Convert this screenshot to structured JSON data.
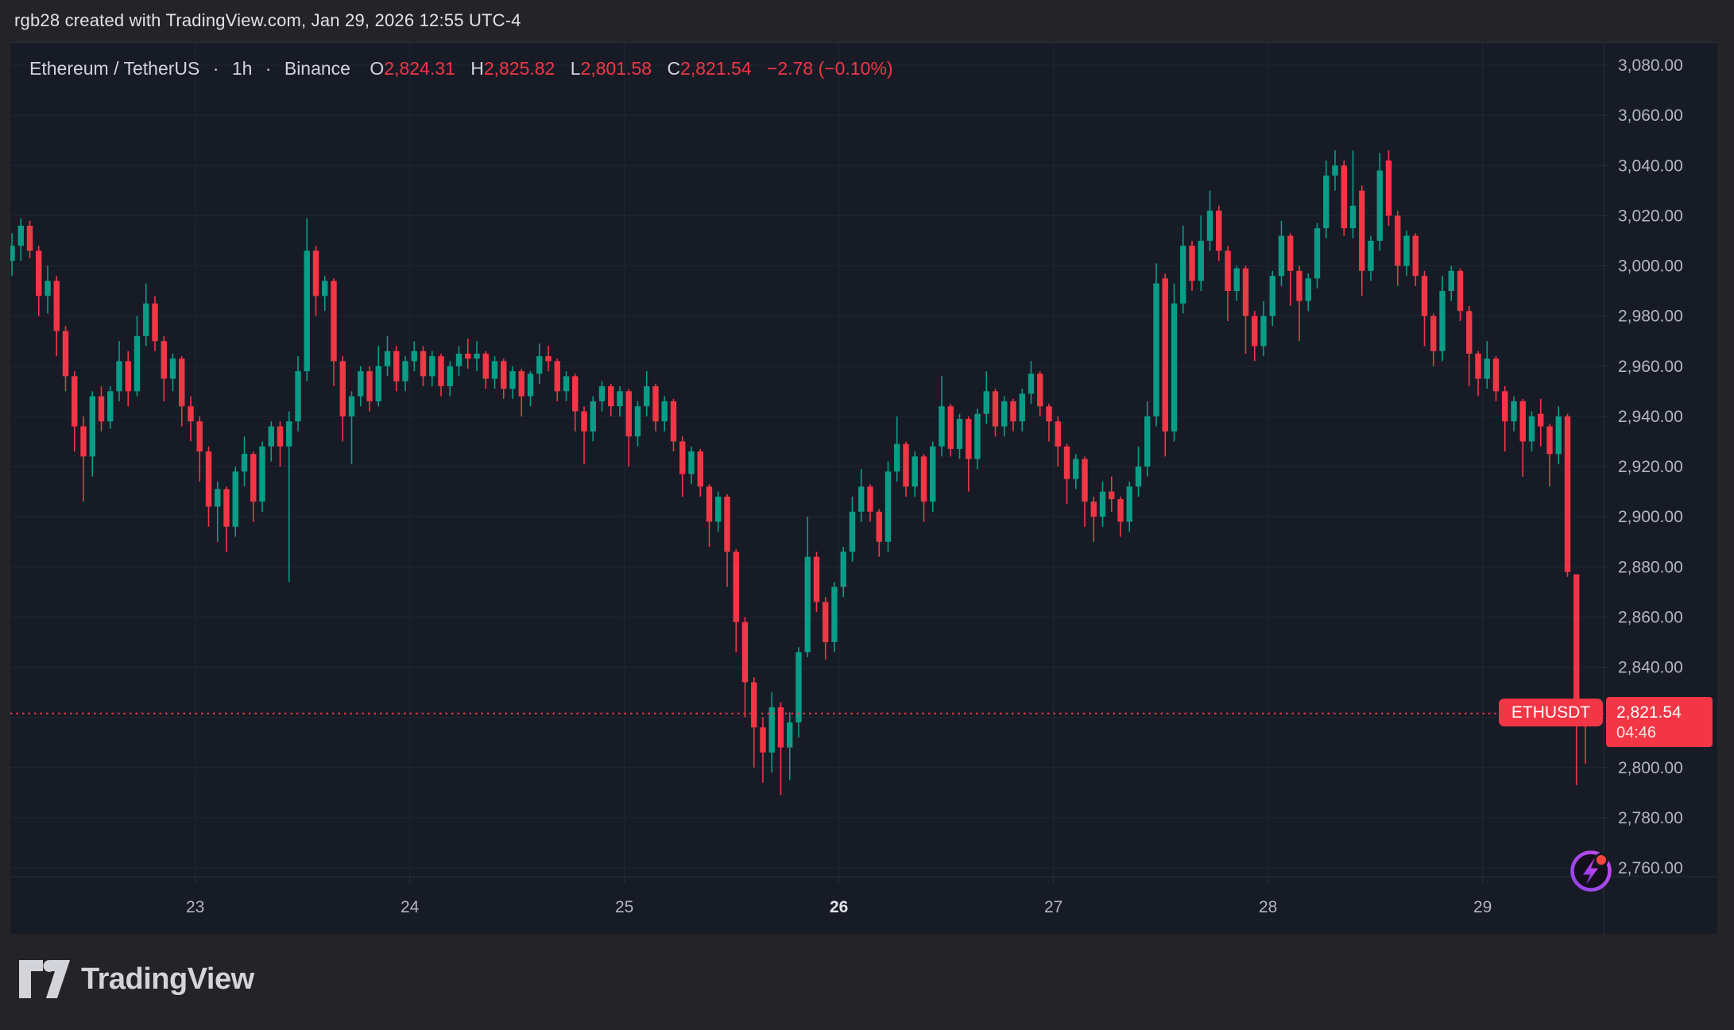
{
  "attribution": "rgb28 created with TradingView.com, Jan 29, 2026 12:55 UTC-4",
  "header": {
    "symbol": "Ethereum / TetherUS",
    "dot1": "·",
    "interval": "1h",
    "dot2": "·",
    "exchange": "Binance",
    "o_label": "O",
    "o": "2,824.31",
    "h_label": "H",
    "h": "2,825.82",
    "l_label": "L",
    "l": "2,801.58",
    "c_label": "C",
    "c": "2,821.54",
    "change": "−2.78 (−0.10%)"
  },
  "badge": {
    "symbol": "ETHUSDT",
    "price": "2,821.54",
    "countdown": "04:46"
  },
  "footer": {
    "brand": "TradingView"
  },
  "chart_data": {
    "type": "candlestick",
    "title": "Ethereum / TetherUS",
    "symbol": "ETHUSDT",
    "exchange": "Binance",
    "interval": "1h",
    "last_price": 2821.54,
    "countdown": "04:46",
    "colors": {
      "up": "#0a9c86",
      "down": "#f23645",
      "last_price_line": "#f23645"
    },
    "y_axis": {
      "min": 2760,
      "max": 3080,
      "step": 20
    },
    "price_scale_labels": [
      {
        "text": "3,080.00",
        "price": 3080
      },
      {
        "text": "3,060.00",
        "price": 3060
      },
      {
        "text": "3,040.00",
        "price": 3040
      },
      {
        "text": "3,020.00",
        "price": 3020
      },
      {
        "text": "3,000.00",
        "price": 3000
      },
      {
        "text": "2,980.00",
        "price": 2980
      },
      {
        "text": "2,960.00",
        "price": 2960
      },
      {
        "text": "2,940.00",
        "price": 2940
      },
      {
        "text": "2,920.00",
        "price": 2920
      },
      {
        "text": "2,900.00",
        "price": 2900
      },
      {
        "text": "2,880.00",
        "price": 2880
      },
      {
        "text": "2,860.00",
        "price": 2860
      },
      {
        "text": "2,840.00",
        "price": 2840
      },
      {
        "text": "2,820.00",
        "price": 2820
      },
      {
        "text": "2,800.00",
        "price": 2800
      },
      {
        "text": "2,780.00",
        "price": 2780
      },
      {
        "text": "2,760.00",
        "price": 2760
      }
    ],
    "day_marks": [
      {
        "label": "23",
        "index": 21,
        "bold": false
      },
      {
        "label": "24",
        "index": 45,
        "bold": false
      },
      {
        "label": "25",
        "index": 69,
        "bold": false
      },
      {
        "label": "26",
        "index": 93,
        "bold": true
      },
      {
        "label": "27",
        "index": 117,
        "bold": false
      },
      {
        "label": "28",
        "index": 141,
        "bold": false
      },
      {
        "label": "29",
        "index": 165,
        "bold": false
      }
    ],
    "candles_format": [
      "open",
      "high",
      "low",
      "close"
    ],
    "candles": [
      [
        3002,
        3013,
        2996,
        3008
      ],
      [
        3008,
        3019,
        3002,
        3016
      ],
      [
        3016,
        3018,
        3003,
        3006
      ],
      [
        3006,
        3008,
        2980,
        2988
      ],
      [
        2988,
        3000,
        2981,
        2994
      ],
      [
        2994,
        2996,
        2964,
        2974
      ],
      [
        2974,
        2976,
        2950,
        2956
      ],
      [
        2956,
        2958,
        2926,
        2936
      ],
      [
        2936,
        2940,
        2906,
        2924
      ],
      [
        2924,
        2950,
        2916,
        2948
      ],
      [
        2948,
        2952,
        2934,
        2938
      ],
      [
        2938,
        2952,
        2935,
        2950
      ],
      [
        2950,
        2970,
        2946,
        2962
      ],
      [
        2962,
        2966,
        2944,
        2950
      ],
      [
        2950,
        2980,
        2948,
        2972
      ],
      [
        2972,
        2993,
        2968,
        2985
      ],
      [
        2985,
        2988,
        2966,
        2970
      ],
      [
        2970,
        2972,
        2946,
        2955
      ],
      [
        2955,
        2965,
        2950,
        2963
      ],
      [
        2963,
        2964,
        2936,
        2944
      ],
      [
        2944,
        2948,
        2930,
        2938
      ],
      [
        2938,
        2940,
        2914,
        2926
      ],
      [
        2926,
        2928,
        2896,
        2904
      ],
      [
        2904,
        2914,
        2890,
        2911
      ],
      [
        2911,
        2912,
        2886,
        2896
      ],
      [
        2896,
        2920,
        2892,
        2918
      ],
      [
        2918,
        2932,
        2912,
        2925
      ],
      [
        2925,
        2926,
        2898,
        2906
      ],
      [
        2906,
        2930,
        2902,
        2928
      ],
      [
        2928,
        2938,
        2922,
        2936
      ],
      [
        2936,
        2938,
        2920,
        2928
      ],
      [
        2928,
        2942,
        2874,
        2938
      ],
      [
        2938,
        2964,
        2934,
        2958
      ],
      [
        2958,
        3019,
        2954,
        3006
      ],
      [
        3006,
        3008,
        2980,
        2988
      ],
      [
        2988,
        2996,
        2982,
        2994
      ],
      [
        2994,
        2995,
        2952,
        2962
      ],
      [
        2962,
        2964,
        2930,
        2940
      ],
      [
        2940,
        2950,
        2921,
        2948
      ],
      [
        2948,
        2960,
        2944,
        2958
      ],
      [
        2958,
        2960,
        2942,
        2946
      ],
      [
        2946,
        2968,
        2944,
        2960
      ],
      [
        2960,
        2972,
        2956,
        2966
      ],
      [
        2966,
        2968,
        2950,
        2954
      ],
      [
        2954,
        2964,
        2950,
        2962
      ],
      [
        2962,
        2970,
        2958,
        2966
      ],
      [
        2966,
        2968,
        2952,
        2956
      ],
      [
        2956,
        2966,
        2952,
        2964
      ],
      [
        2964,
        2965,
        2948,
        2952
      ],
      [
        2952,
        2962,
        2948,
        2960
      ],
      [
        2960,
        2968,
        2956,
        2965
      ],
      [
        2965,
        2971,
        2959,
        2963
      ],
      [
        2963,
        2970,
        2958,
        2965
      ],
      [
        2965,
        2966,
        2951,
        2955
      ],
      [
        2955,
        2964,
        2951,
        2962
      ],
      [
        2962,
        2963,
        2947,
        2951
      ],
      [
        2951,
        2960,
        2947,
        2958
      ],
      [
        2958,
        2959,
        2940,
        2948
      ],
      [
        2948,
        2958,
        2944,
        2957
      ],
      [
        2957,
        2969,
        2953,
        2964
      ],
      [
        2964,
        2968,
        2958,
        2962
      ],
      [
        2962,
        2963,
        2946,
        2950
      ],
      [
        2950,
        2958,
        2946,
        2956
      ],
      [
        2956,
        2957,
        2934,
        2942
      ],
      [
        2942,
        2944,
        2921,
        2934
      ],
      [
        2934,
        2948,
        2930,
        2946
      ],
      [
        2946,
        2954,
        2942,
        2952
      ],
      [
        2952,
        2953,
        2940,
        2944
      ],
      [
        2944,
        2952,
        2940,
        2950
      ],
      [
        2950,
        2951,
        2920,
        2932
      ],
      [
        2932,
        2946,
        2928,
        2944
      ],
      [
        2944,
        2958,
        2940,
        2952
      ],
      [
        2952,
        2953,
        2934,
        2938
      ],
      [
        2938,
        2948,
        2934,
        2946
      ],
      [
        2946,
        2947,
        2926,
        2930
      ],
      [
        2930,
        2932,
        2908,
        2917
      ],
      [
        2917,
        2928,
        2913,
        2926
      ],
      [
        2926,
        2927,
        2908,
        2912
      ],
      [
        2912,
        2913,
        2888,
        2898
      ],
      [
        2898,
        2910,
        2894,
        2908
      ],
      [
        2908,
        2909,
        2872,
        2886
      ],
      [
        2886,
        2887,
        2846,
        2858
      ],
      [
        2858,
        2860,
        2820,
        2834
      ],
      [
        2834,
        2836,
        2800,
        2816
      ],
      [
        2816,
        2820,
        2794,
        2806
      ],
      [
        2806,
        2830,
        2798,
        2824
      ],
      [
        2824,
        2826,
        2789,
        2808
      ],
      [
        2808,
        2822,
        2795,
        2818
      ],
      [
        2818,
        2848,
        2812,
        2846
      ],
      [
        2846,
        2900,
        2844,
        2884
      ],
      [
        2884,
        2886,
        2862,
        2866
      ],
      [
        2866,
        2868,
        2843,
        2850
      ],
      [
        2850,
        2874,
        2846,
        2872
      ],
      [
        2872,
        2888,
        2868,
        2886
      ],
      [
        2886,
        2908,
        2882,
        2902
      ],
      [
        2902,
        2919,
        2898,
        2912
      ],
      [
        2912,
        2913,
        2898,
        2902
      ],
      [
        2902,
        2903,
        2884,
        2890
      ],
      [
        2890,
        2922,
        2886,
        2918
      ],
      [
        2918,
        2940,
        2914,
        2929
      ],
      [
        2929,
        2930,
        2908,
        2912
      ],
      [
        2912,
        2926,
        2908,
        2924
      ],
      [
        2924,
        2925,
        2898,
        2906
      ],
      [
        2906,
        2930,
        2902,
        2928
      ],
      [
        2928,
        2956,
        2924,
        2944
      ],
      [
        2944,
        2945,
        2924,
        2927
      ],
      [
        2927,
        2941,
        2923,
        2939
      ],
      [
        2939,
        2940,
        2910,
        2923
      ],
      [
        2923,
        2943,
        2919,
        2941
      ],
      [
        2941,
        2958,
        2937,
        2950
      ],
      [
        2950,
        2951,
        2932,
        2936
      ],
      [
        2936,
        2948,
        2932,
        2946
      ],
      [
        2946,
        2947,
        2934,
        2938
      ],
      [
        2938,
        2951,
        2934,
        2949
      ],
      [
        2949,
        2962,
        2945,
        2957
      ],
      [
        2957,
        2958,
        2940,
        2944
      ],
      [
        2944,
        2945,
        2930,
        2938
      ],
      [
        2938,
        2940,
        2920,
        2928
      ],
      [
        2928,
        2929,
        2905,
        2915
      ],
      [
        2915,
        2925,
        2911,
        2923
      ],
      [
        2923,
        2924,
        2896,
        2906
      ],
      [
        2906,
        2908,
        2890,
        2900
      ],
      [
        2900,
        2914,
        2896,
        2910
      ],
      [
        2910,
        2916,
        2902,
        2907
      ],
      [
        2907,
        2908,
        2892,
        2898
      ],
      [
        2898,
        2914,
        2894,
        2912
      ],
      [
        2912,
        2928,
        2908,
        2920
      ],
      [
        2920,
        2946,
        2916,
        2940
      ],
      [
        2940,
        3001,
        2936,
        2993
      ],
      [
        2995,
        2997,
        2924,
        2934
      ],
      [
        2934,
        2993,
        2930,
        2985
      ],
      [
        2985,
        3016,
        2981,
        3008
      ],
      [
        3008,
        3010,
        2990,
        2994
      ],
      [
        2994,
        3020,
        2990,
        3010
      ],
      [
        3010,
        3030,
        3006,
        3022
      ],
      [
        3022,
        3024,
        3002,
        3006
      ],
      [
        3006,
        3008,
        2978,
        2990
      ],
      [
        2990,
        3000,
        2986,
        2999
      ],
      [
        2999,
        3000,
        2965,
        2980
      ],
      [
        2980,
        2982,
        2962,
        2968
      ],
      [
        2968,
        2986,
        2964,
        2980
      ],
      [
        2980,
        2998,
        2976,
        2996
      ],
      [
        2996,
        3018,
        2992,
        3012
      ],
      [
        3012,
        3013,
        2984,
        2998
      ],
      [
        2998,
        3000,
        2970,
        2986
      ],
      [
        2986,
        2997,
        2982,
        2995
      ],
      [
        2995,
        3017,
        2991,
        3015
      ],
      [
        3015,
        3042,
        3011,
        3036
      ],
      [
        3036,
        3046,
        3030,
        3040
      ],
      [
        3040,
        3042,
        3012,
        3015
      ],
      [
        3015,
        3046,
        3011,
        3024
      ],
      [
        3030,
        3032,
        2988,
        2998
      ],
      [
        2998,
        3012,
        2994,
        3010
      ],
      [
        3010,
        3045,
        3006,
        3038
      ],
      [
        3042,
        3046,
        3016,
        3020
      ],
      [
        3020,
        3022,
        2992,
        3000
      ],
      [
        3000,
        3014,
        2996,
        3012
      ],
      [
        3012,
        3013,
        2992,
        2996
      ],
      [
        2996,
        2998,
        2968,
        2980
      ],
      [
        2980,
        2981,
        2960,
        2966
      ],
      [
        2966,
        2996,
        2962,
        2990
      ],
      [
        2990,
        3000,
        2986,
        2998
      ],
      [
        2998,
        2999,
        2978,
        2982
      ],
      [
        2982,
        2984,
        2952,
        2965
      ],
      [
        2965,
        2966,
        2948,
        2955
      ],
      [
        2955,
        2970,
        2951,
        2963
      ],
      [
        2963,
        2964,
        2946,
        2950
      ],
      [
        2950,
        2952,
        2926,
        2938
      ],
      [
        2938,
        2948,
        2934,
        2946
      ],
      [
        2946,
        2947,
        2916,
        2930
      ],
      [
        2930,
        2942,
        2926,
        2940
      ],
      [
        2941,
        2947,
        2928,
        2936
      ],
      [
        2936,
        2937,
        2912,
        2925
      ],
      [
        2925,
        2944,
        2921,
        2940
      ],
      [
        2940,
        2941,
        2876,
        2878
      ],
      [
        2877,
        2877,
        2793,
        2824
      ],
      [
        2824.31,
        2825.82,
        2801.58,
        2821.54
      ]
    ]
  }
}
